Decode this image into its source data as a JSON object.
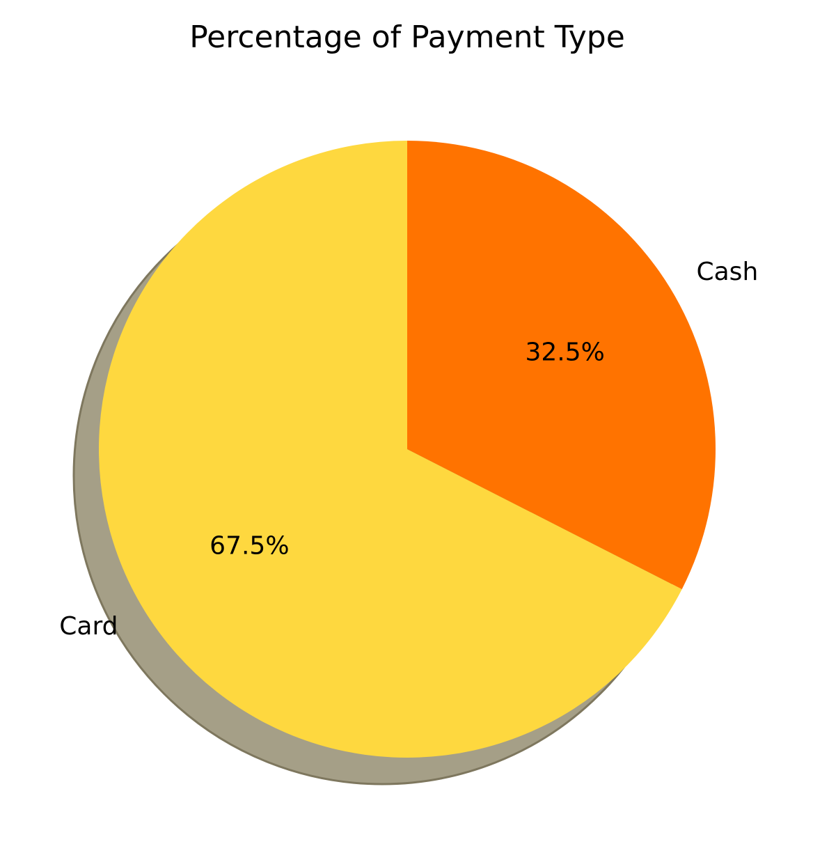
{
  "chart_data": {
    "type": "pie",
    "title": "Percentage of Payment Type",
    "categories": [
      "Card",
      "Cash"
    ],
    "values": [
      67.5,
      32.5
    ],
    "value_labels": [
      "67.5%",
      "32.5%"
    ],
    "colors": [
      "#FED83F",
      "#FF7300"
    ],
    "shadow": true,
    "shadow_color": "#A59F87",
    "start_angle_deg": 90,
    "direction": "counterclockwise",
    "legend": "none"
  }
}
